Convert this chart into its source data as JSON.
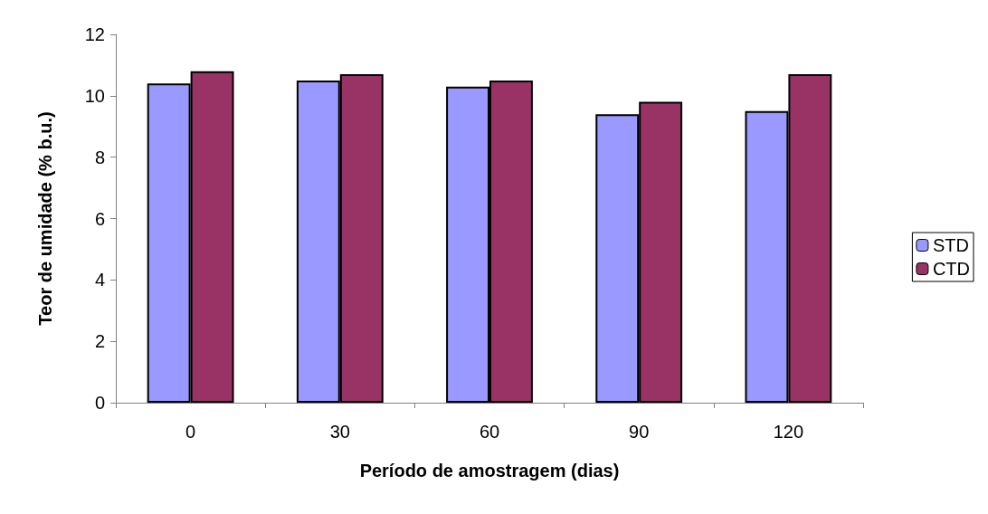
{
  "chart_data": {
    "type": "bar",
    "xlabel": "Período de amostragem (dias)",
    "ylabel": "Teor de umidade (% b.u.)",
    "categories": [
      "0",
      "30",
      "60",
      "90",
      "120"
    ],
    "series": [
      {
        "name": "STD",
        "color": "#9999ff",
        "values": [
          10.4,
          10.5,
          10.3,
          9.4,
          9.5
        ]
      },
      {
        "name": "CTD",
        "color": "#993366",
        "values": [
          10.8,
          10.7,
          10.5,
          9.8,
          10.7
        ]
      }
    ],
    "ylim": [
      0,
      12
    ],
    "yticks": [
      0,
      2,
      4,
      6,
      8,
      10,
      12
    ],
    "grid": false,
    "legend": "right"
  }
}
